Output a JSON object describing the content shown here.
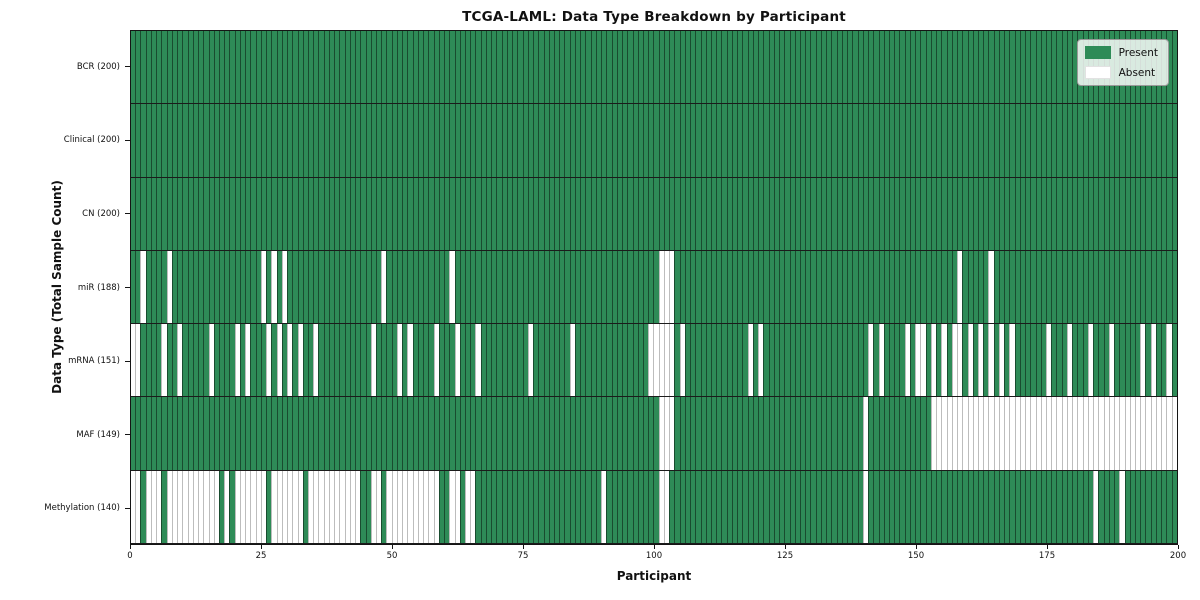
{
  "chart_data": {
    "type": "heatmap",
    "title": "TCGA-LAML: Data Type Breakdown by Participant",
    "xlabel": "Participant",
    "ylabel": "Data Type (Total Sample Count)",
    "x_range": [
      0,
      200
    ],
    "n_participants": 200,
    "x_ticks": [
      0,
      25,
      50,
      75,
      100,
      125,
      150,
      175,
      200
    ],
    "grid": false,
    "legend_position": "upper right",
    "legend": {
      "present_label": "Present",
      "absent_label": "Absent"
    },
    "colors": {
      "present": "#2e8b57",
      "absent": "#ffffff"
    },
    "rows": [
      {
        "name": "BCR",
        "label": "BCR (200)",
        "present_count": 200,
        "absent": []
      },
      {
        "name": "Clinical",
        "label": "Clinical (200)",
        "present_count": 200,
        "absent": []
      },
      {
        "name": "CN",
        "label": "CN (200)",
        "present_count": 200,
        "absent": []
      },
      {
        "name": "miR",
        "label": "miR (188)",
        "present_count": 188,
        "absent": [
          2,
          7,
          25,
          27,
          29,
          48,
          61,
          101,
          102,
          103,
          158,
          164
        ]
      },
      {
        "name": "mRNA",
        "label": "mRNA (151)",
        "present_count": 151,
        "absent": [
          0,
          1,
          6,
          9,
          15,
          20,
          22,
          26,
          28,
          30,
          32,
          35,
          46,
          51,
          53,
          58,
          62,
          66,
          76,
          84,
          99,
          100,
          101,
          102,
          103,
          105,
          118,
          120,
          141,
          143,
          148,
          150,
          151,
          153,
          155,
          157,
          158,
          160,
          162,
          164,
          166,
          168,
          175,
          179,
          183,
          187,
          193,
          195,
          198
        ]
      },
      {
        "name": "MAF",
        "label": "MAF (149)",
        "present_count": 149,
        "absent": [
          101,
          102,
          103,
          140,
          153,
          154,
          155,
          156,
          157,
          158,
          159,
          160,
          161,
          162,
          163,
          164,
          165,
          166,
          167,
          168,
          169,
          170,
          171,
          172,
          173,
          174,
          175,
          176,
          177,
          178,
          179,
          180,
          181,
          182,
          183,
          184,
          185,
          186,
          187,
          188,
          189,
          190,
          191,
          192,
          193,
          194,
          195,
          196,
          197,
          198,
          199
        ]
      },
      {
        "name": "Methylation",
        "label": "Methylation (140)",
        "present_count": 140,
        "absent": [
          0,
          1,
          3,
          4,
          5,
          7,
          8,
          9,
          10,
          11,
          12,
          13,
          14,
          15,
          16,
          18,
          20,
          21,
          22,
          23,
          24,
          25,
          27,
          28,
          29,
          30,
          31,
          32,
          34,
          35,
          36,
          37,
          38,
          39,
          40,
          41,
          42,
          43,
          46,
          47,
          49,
          50,
          51,
          52,
          53,
          54,
          55,
          56,
          57,
          58,
          61,
          62,
          64,
          65,
          90,
          101,
          102,
          140,
          184,
          189
        ]
      }
    ]
  }
}
